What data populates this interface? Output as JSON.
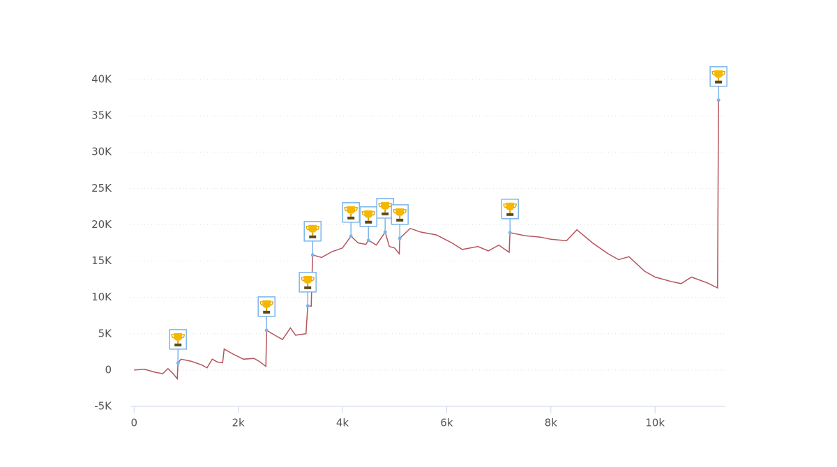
{
  "chart_data": {
    "type": "line",
    "x": [
      0,
      200,
      400,
      550,
      650,
      750,
      830,
      843,
      900,
      1100,
      1300,
      1400,
      1500,
      1600,
      1700,
      1730,
      1900,
      2100,
      2300,
      2400,
      2530,
      2543,
      2700,
      2850,
      3000,
      3100,
      3300,
      3333,
      3400,
      3427,
      3600,
      3800,
      4000,
      4163,
      4300,
      4450,
      4498,
      4650,
      4819,
      4900,
      5000,
      5090,
      5100,
      5300,
      5500,
      5800,
      6100,
      6300,
      6600,
      6800,
      7000,
      7200,
      7216,
      7500,
      7800,
      8000,
      8300,
      8500,
      8800,
      9100,
      9300,
      9500,
      9800,
      10000,
      10300,
      10500,
      10700,
      11000,
      11200,
      11218
    ],
    "values": [
      0,
      100,
      -300,
      -500,
      200,
      -500,
      -1200,
      960,
      1500,
      1200,
      700,
      300,
      1500,
      1100,
      1000,
      2900,
      2200,
      1500,
      1600,
      1200,
      500,
      5470,
      4800,
      4200,
      5800,
      4800,
      5000,
      8830,
      8800,
      15840,
      15500,
      16300,
      16800,
      18430,
      17500,
      17300,
      17860,
      17200,
      19000,
      17000,
      16800,
      16000,
      18140,
      19500,
      19000,
      18600,
      17500,
      16600,
      17000,
      16400,
      17200,
      16200,
      18910,
      18500,
      18300,
      18000,
      17800,
      19300,
      17500,
      16000,
      15200,
      15600,
      13600,
      12800,
      12200,
      11900,
      12800,
      12000,
      11300,
      37150
    ],
    "color": "#b5545c",
    "markers": {
      "x": [
        843,
        2543,
        3333,
        3427,
        4163,
        4498,
        4819,
        5100,
        7216,
        11218
      ],
      "values": [
        960,
        5470,
        8830,
        15840,
        18430,
        17860,
        19000,
        18140,
        18910,
        37150
      ],
      "color": "#7cb5ec"
    },
    "xlim": [
      -70,
      11350
    ],
    "ylim": [
      -5000,
      40000
    ],
    "xticks": [
      0,
      {
        "value": 2000,
        "label": "2k"
      },
      {
        "value": 4000,
        "label": "4k"
      },
      {
        "value": 6000,
        "label": "6k"
      },
      {
        "value": 8000,
        "label": "8k"
      },
      {
        "value": 10000,
        "label": "10k"
      }
    ],
    "yticks": [
      {
        "value": -5000,
        "label": "-5K"
      },
      0,
      {
        "value": 5000,
        "label": "5K"
      },
      {
        "value": 10000,
        "label": "10K"
      },
      {
        "value": 15000,
        "label": "15K"
      },
      {
        "value": 20000,
        "label": "20K"
      },
      {
        "value": 25000,
        "label": "25K"
      },
      {
        "value": 30000,
        "label": "30K"
      },
      {
        "value": 35000,
        "label": "35K"
      },
      {
        "value": 40000,
        "label": "40K"
      }
    ],
    "grid": true
  }
}
